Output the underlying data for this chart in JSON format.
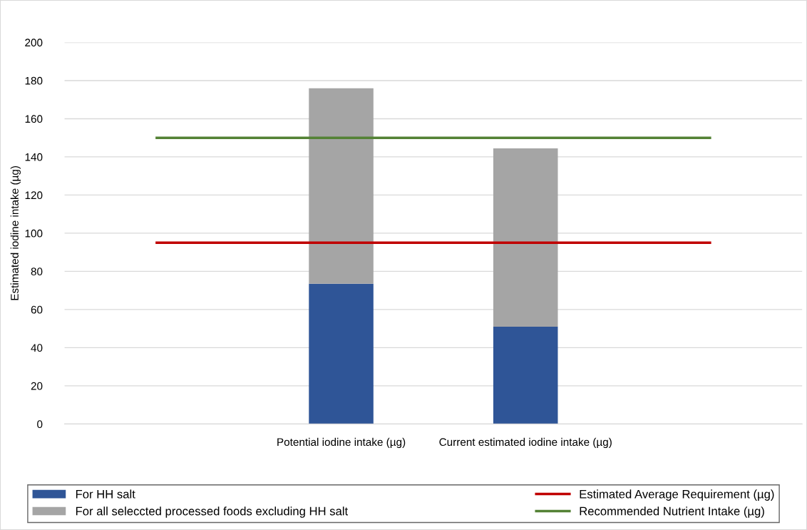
{
  "chart_data": {
    "type": "bar",
    "stacked": true,
    "ylabel": "Estimated iodine intake (µg)",
    "categories": [
      null,
      "Potential iodine intake (µg)",
      "Current estimated iodine intake (µg)",
      null
    ],
    "series": [
      {
        "name": "For HH salt",
        "color": "#2f5597",
        "values": [
          null,
          73.5,
          51,
          null
        ]
      },
      {
        "name": "For all seleccted processed foods excluding HH salt",
        "color": "#a5a5a5",
        "values": [
          null,
          102.5,
          93.5,
          null
        ]
      },
      {
        "name": "Estimated Average Requirement (µg)",
        "type": "line",
        "color": "#c00000",
        "values": [
          95,
          95,
          95,
          95
        ]
      },
      {
        "name": "Recommended Nutrient Intake (µg)",
        "type": "line",
        "color": "#548235",
        "values": [
          150,
          150,
          150,
          150
        ]
      }
    ],
    "ylim": [
      0,
      200
    ],
    "yticks": [
      0,
      20,
      40,
      60,
      80,
      100,
      120,
      140,
      160,
      180,
      200
    ],
    "grid": "y",
    "legend": "bottom",
    "marker": "none",
    "line_style": "solid"
  }
}
